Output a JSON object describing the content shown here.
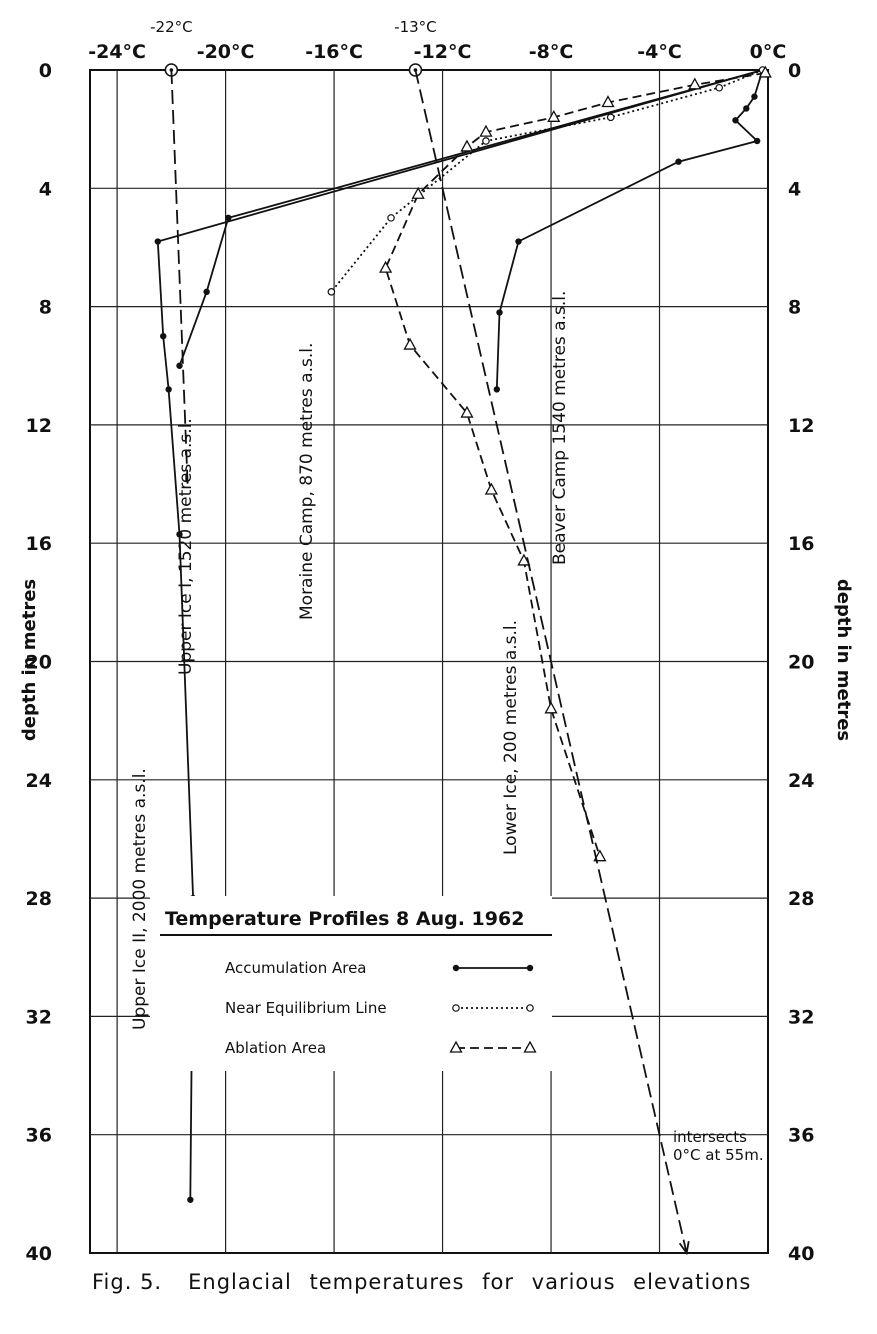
{
  "chart_data": {
    "type": "line",
    "title": "Temperature Profiles 8 Aug. 1962",
    "x_ticks": [
      "-24°C",
      "-20°C",
      "-16°C",
      "-12°C",
      "-8°C",
      "-4°C",
      "0°C"
    ],
    "x_tick_values": [
      -24,
      -20,
      -16,
      -12,
      -8,
      -4,
      0
    ],
    "extra_top_labels": [
      {
        "text": "-22°C",
        "value": -22
      },
      {
        "text": "-13°C",
        "value": -13
      }
    ],
    "y_ticks": [
      "0",
      "4",
      "8",
      "12",
      "16",
      "20",
      "24",
      "28",
      "32",
      "36",
      "40"
    ],
    "y_tick_values": [
      0,
      4,
      8,
      12,
      16,
      20,
      24,
      28,
      32,
      36,
      40
    ],
    "ylabel": "depth in metres",
    "xlim": [
      -25,
      0
    ],
    "ylim": [
      0,
      40
    ],
    "grid": true,
    "legend": {
      "title": "Temperature Profiles 8 Aug. 1962",
      "placement": "lower-left",
      "entries": [
        {
          "label": "Accumulation Area",
          "style": "solid",
          "marker": "dot"
        },
        {
          "label": "Near Equilibrium Line",
          "style": "dotted",
          "marker": "circle"
        },
        {
          "label": "Ablation Area",
          "style": "dashed",
          "marker": "triangle"
        }
      ]
    },
    "series": [
      {
        "name": "Upper Ice II, 2000 metres a.s.l.",
        "area": "accumulation",
        "points": [
          [
            -0.2,
            0
          ],
          [
            -22.5,
            5.8
          ],
          [
            -22.3,
            9
          ],
          [
            -22.1,
            10.8
          ],
          [
            -21.7,
            15.7
          ],
          [
            -21.2,
            28
          ],
          [
            -21.3,
            38.2
          ]
        ]
      },
      {
        "name": "Upper Ice I, 1520 metres a.s.l.",
        "area": "accumulation",
        "points": [
          [
            -0.2,
            0
          ],
          [
            -19.9,
            5
          ],
          [
            -20.7,
            7.5
          ],
          [
            -21.7,
            10
          ]
        ]
      },
      {
        "name": "Beaver Camp 1540 metres a.s.l.",
        "area": "accumulation",
        "points": [
          [
            -0.2,
            0
          ],
          [
            -0.5,
            0.9
          ],
          [
            -0.8,
            1.3
          ],
          [
            -1.2,
            1.7
          ],
          [
            -0.4,
            2.4
          ],
          [
            -3.3,
            3.1
          ],
          [
            -9.2,
            5.8
          ],
          [
            -9.9,
            8.2
          ],
          [
            -10,
            10.8
          ]
        ]
      },
      {
        "name": "Moraine Camp, 870 metres a.s.l.",
        "area": "near equilibrium line",
        "points": [
          [
            -0.2,
            0
          ],
          [
            -1.8,
            0.6
          ],
          [
            -5.8,
            1.6
          ],
          [
            -10.4,
            2.4
          ],
          [
            -13.9,
            5
          ],
          [
            -16.1,
            7.5
          ]
        ]
      },
      {
        "name": "Lower Ice, 200 metres a.s.l.",
        "area": "ablation",
        "points": [
          [
            -0.1,
            0.1
          ],
          [
            -2.7,
            0.5
          ],
          [
            -5.9,
            1.1
          ],
          [
            -7.9,
            1.6
          ],
          [
            -10.4,
            2.1
          ],
          [
            -11.1,
            2.6
          ],
          [
            -12.9,
            4.2
          ],
          [
            -14.1,
            6.7
          ],
          [
            -13.2,
            9.3
          ],
          [
            -11.1,
            11.6
          ],
          [
            -10.2,
            14.2
          ],
          [
            -9,
            16.6
          ],
          [
            -8,
            21.6
          ],
          [
            -6.2,
            26.6
          ]
        ]
      },
      {
        "name": "-13°C extrapolation",
        "area": "ablation",
        "note": "intersects 0°C at 55m.",
        "points": [
          [
            -13,
            0
          ],
          [
            -3,
            40
          ]
        ]
      },
      {
        "name": "-22°C extrapolation",
        "area": "accumulation",
        "points": [
          [
            -22,
            0
          ],
          [
            -21.4,
            14
          ]
        ]
      }
    ],
    "annotations": [
      {
        "text": "intersects 0°C at 55m."
      }
    ]
  },
  "caption": {
    "fig": "Fig. 5.",
    "text": "Englacial temperatures for various elevations"
  }
}
